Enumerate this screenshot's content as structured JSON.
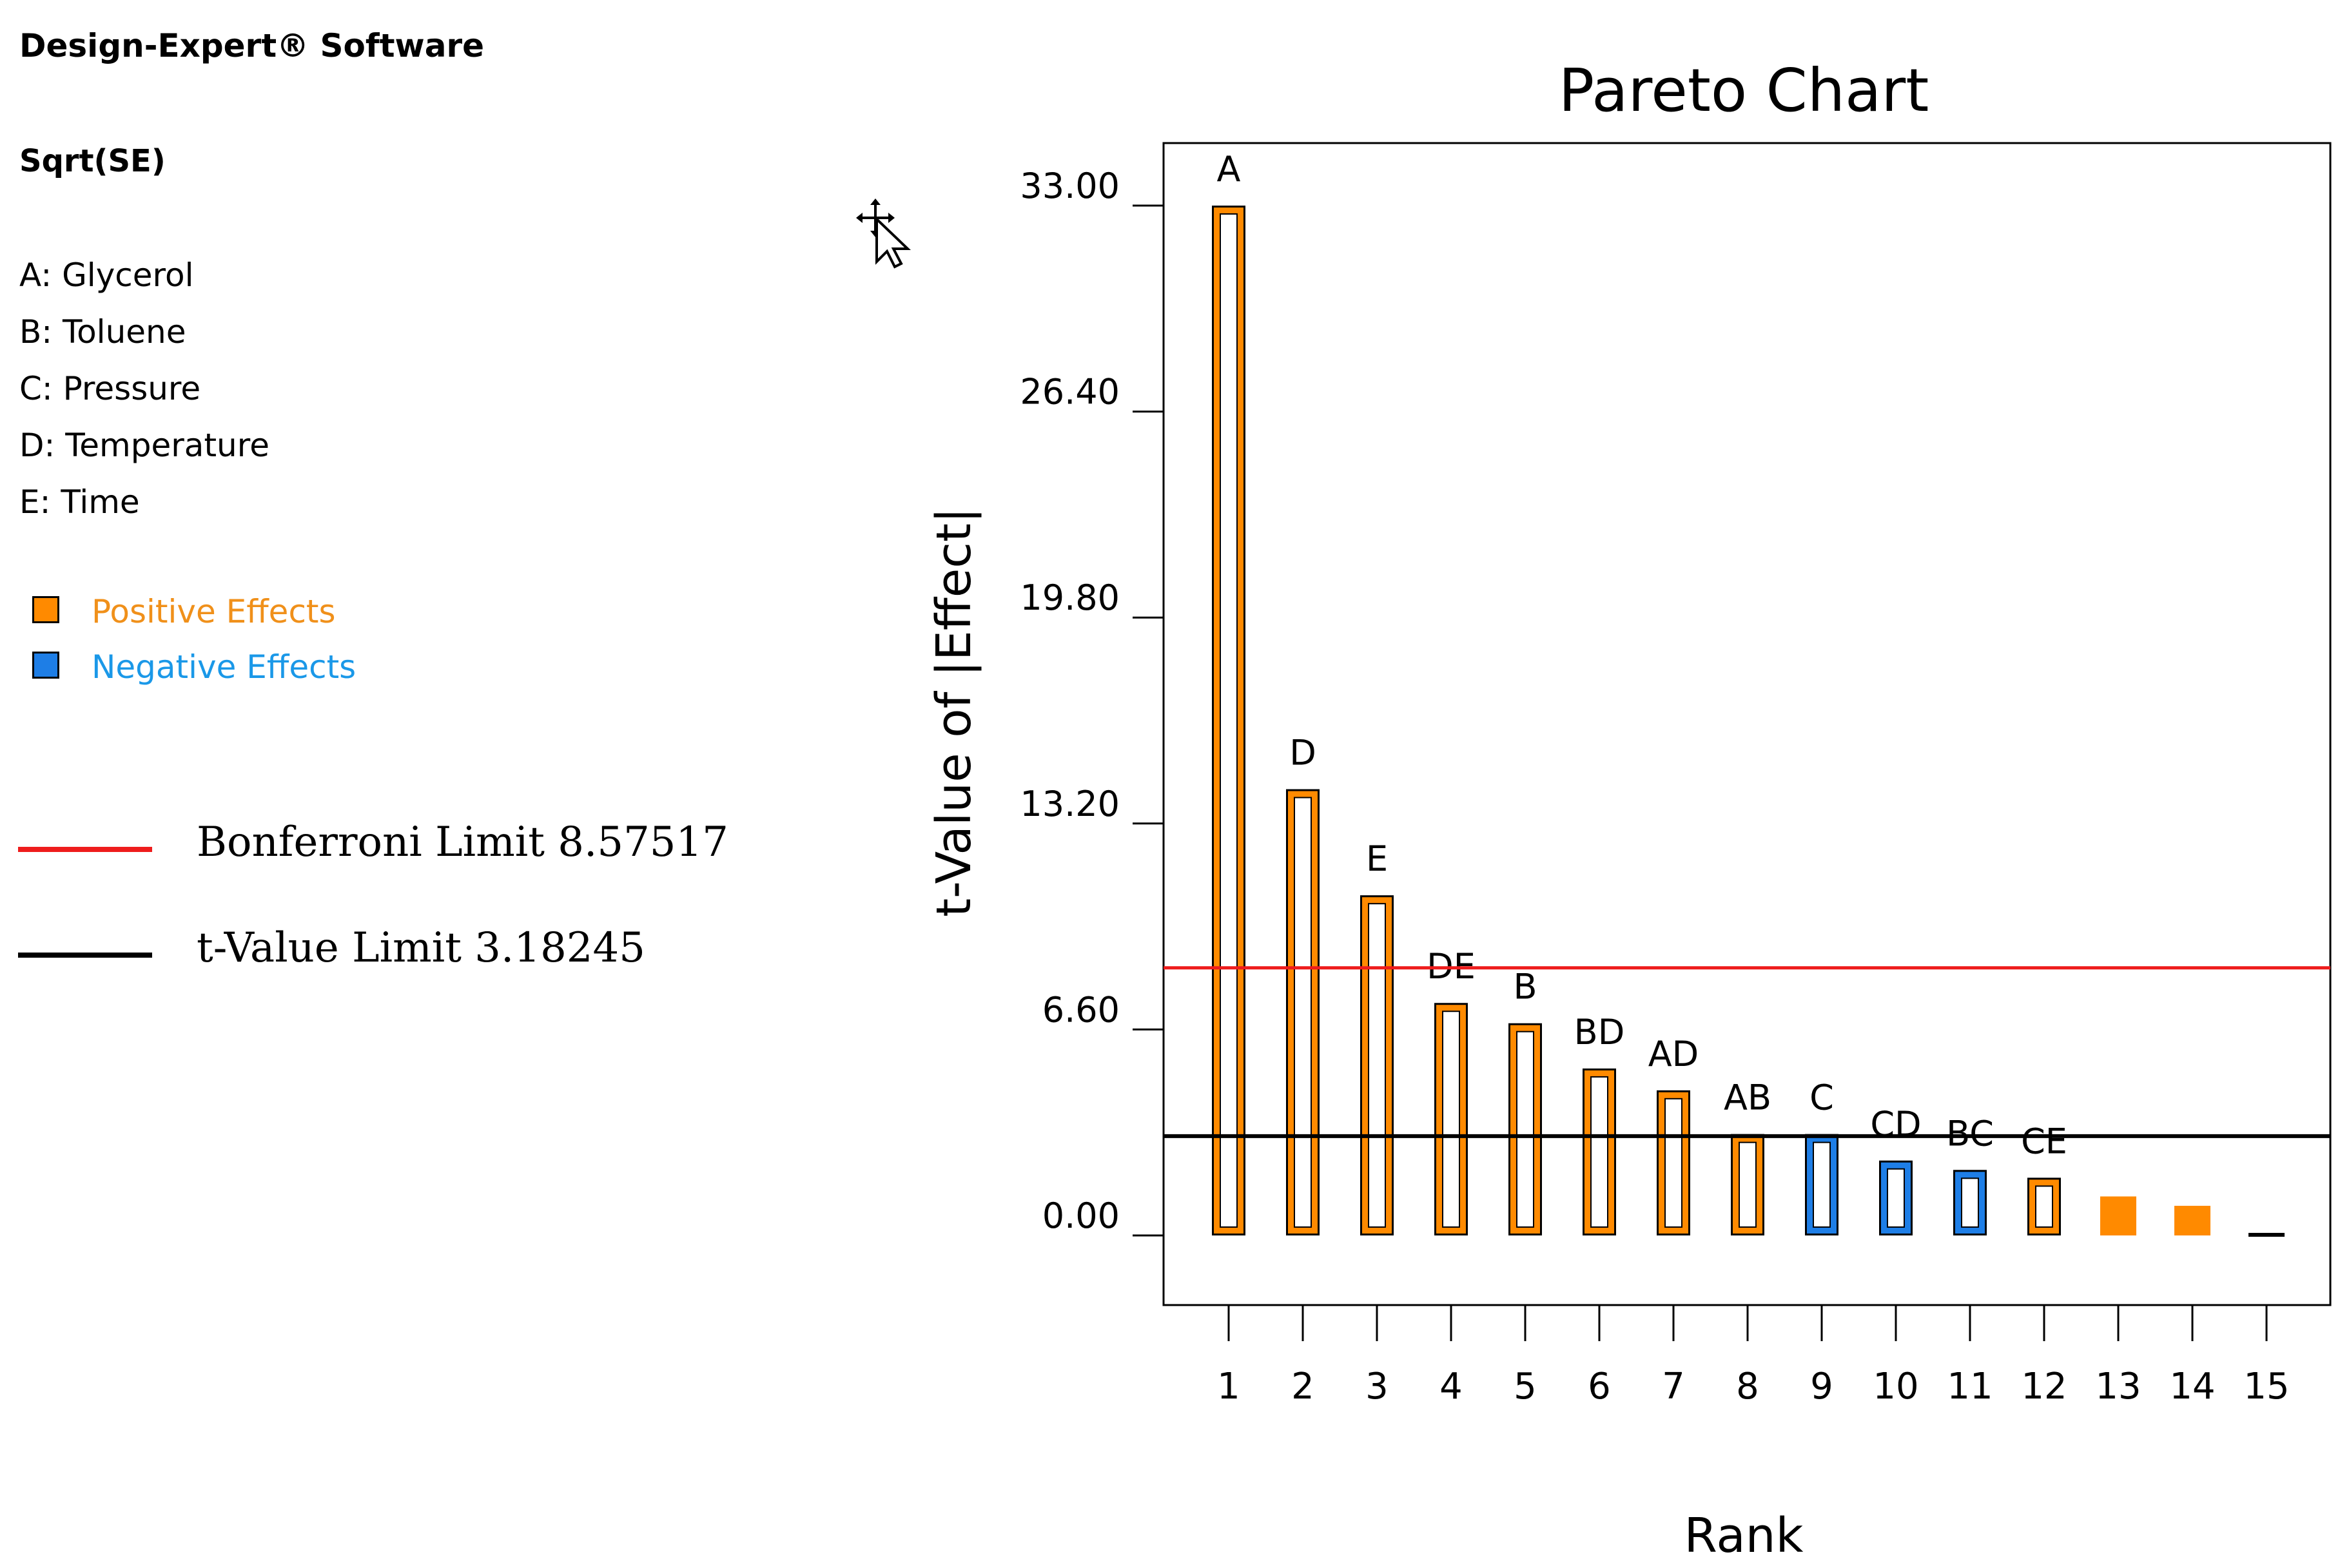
{
  "software": "Design-Expert® Software",
  "response": "Sqrt(SE)",
  "factors": [
    "A: Glycerol",
    "B: Toluene",
    "C: Pressure",
    "D: Temperature",
    "E: Time"
  ],
  "legend": {
    "positive": {
      "label": "Positive Effects",
      "color": "#ff8a00",
      "text_color": "#f0901a"
    },
    "negative": {
      "label": "Negative Effects",
      "color": "#1e7ee6",
      "text_color": "#1a98e8"
    }
  },
  "limits": {
    "bonferroni": {
      "label": "Bonferroni Limit 8.57517",
      "color": "#ee1c1c"
    },
    "tvalue": {
      "label": "t-Value Limit 3.18245",
      "color": "#000000"
    }
  },
  "cursor": "move-cursor-icon",
  "chart_data": {
    "type": "bar",
    "title": "Pareto Chart",
    "xlabel": "Rank",
    "ylabel": "t-Value of |Effect|",
    "ylim": [
      -2.2,
      35.2
    ],
    "yticks": [
      "0.00",
      "6.60",
      "13.20",
      "19.80",
      "26.40",
      "33.00"
    ],
    "ytick_values": [
      0,
      6.6,
      13.2,
      19.8,
      26.4,
      33.0
    ],
    "xticks": [
      "1",
      "2",
      "3",
      "4",
      "5",
      "6",
      "7",
      "8",
      "9",
      "10",
      "11",
      "12",
      "13",
      "14",
      "15"
    ],
    "bonferroni_limit": 8.57517,
    "t_value_limit": 3.18245,
    "bars": [
      {
        "rank": 1,
        "label": "A",
        "value": 33.0,
        "effect": "positive",
        "filled": false
      },
      {
        "rank": 2,
        "label": "D",
        "value": 14.3,
        "effect": "positive",
        "filled": false
      },
      {
        "rank": 3,
        "label": "E",
        "value": 10.9,
        "effect": "positive",
        "filled": false
      },
      {
        "rank": 4,
        "label": "DE",
        "value": 7.45,
        "effect": "positive",
        "filled": false
      },
      {
        "rank": 5,
        "label": "B",
        "value": 6.8,
        "effect": "positive",
        "filled": false
      },
      {
        "rank": 6,
        "label": "BD",
        "value": 5.35,
        "effect": "positive",
        "filled": false
      },
      {
        "rank": 7,
        "label": "AD",
        "value": 4.65,
        "effect": "positive",
        "filled": false
      },
      {
        "rank": 8,
        "label": "AB",
        "value": 3.25,
        "effect": "positive",
        "filled": false
      },
      {
        "rank": 9,
        "label": "C",
        "value": 3.25,
        "effect": "negative",
        "filled": false
      },
      {
        "rank": 10,
        "label": "CD",
        "value": 2.4,
        "effect": "negative",
        "filled": false
      },
      {
        "rank": 11,
        "label": "BC",
        "value": 2.1,
        "effect": "negative",
        "filled": false
      },
      {
        "rank": 12,
        "label": "CE",
        "value": 1.85,
        "effect": "positive",
        "filled": false
      },
      {
        "rank": 13,
        "label": "",
        "value": 1.25,
        "effect": "positive",
        "filled": true
      },
      {
        "rank": 14,
        "label": "",
        "value": 0.95,
        "effect": "positive",
        "filled": true
      },
      {
        "rank": 15,
        "label": "",
        "value": 0.1,
        "effect": "none",
        "filled": true
      }
    ]
  }
}
